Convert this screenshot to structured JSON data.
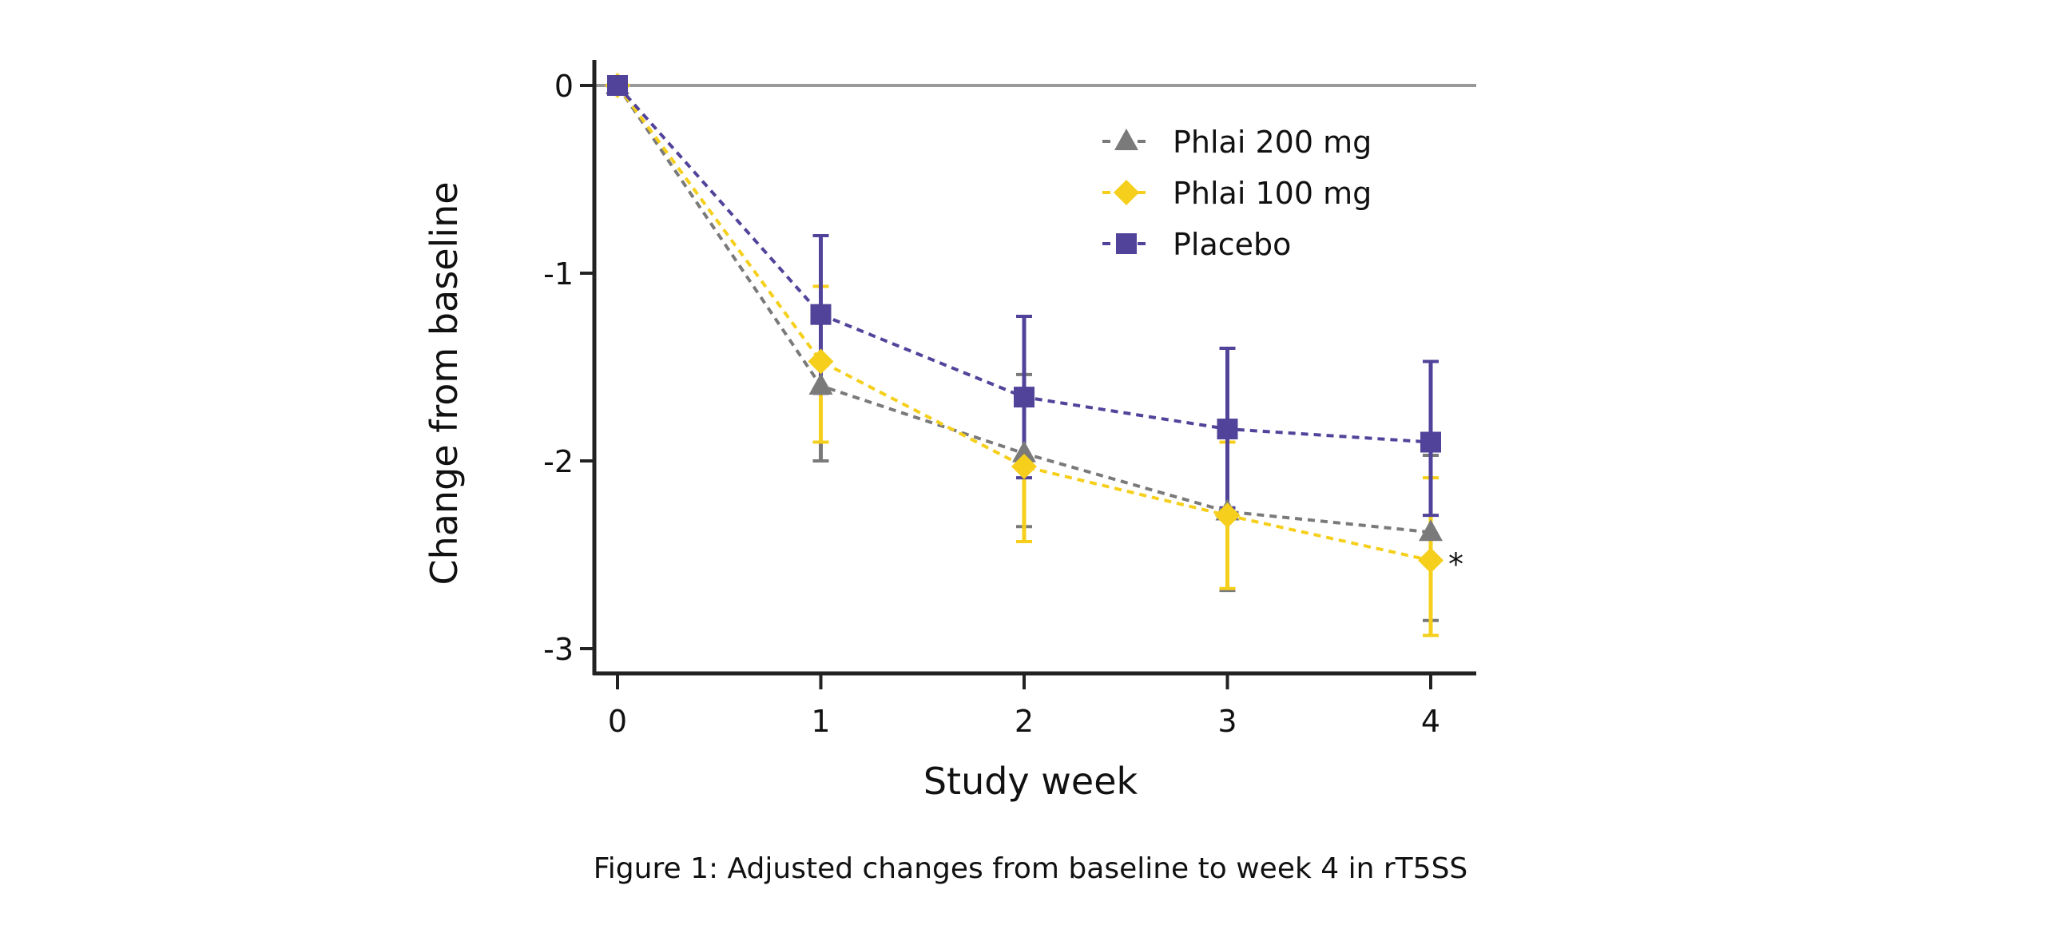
{
  "caption": "Figure 1:  Adjusted changes from baseline to week 4 in rT5SS",
  "chart_data": {
    "type": "line",
    "title": "",
    "xlabel": "Study week",
    "ylabel": "Change from baseline",
    "x": [
      0,
      1,
      2,
      3,
      4
    ],
    "x_ticks": [
      "0",
      "1",
      "2",
      "3",
      "4"
    ],
    "y_ticks": [
      "0",
      "-1",
      "-2",
      "-3"
    ],
    "y_tick_values": [
      0,
      -1,
      -2,
      -3
    ],
    "xlim": [
      -0.1,
      4.2
    ],
    "ylim": [
      -3.1,
      0.13
    ],
    "reference_line": 0,
    "grid": false,
    "legend_position": "top-right",
    "annotations": [
      {
        "text": "*",
        "series": "Phlai 100 mg",
        "x": 4
      }
    ],
    "series": [
      {
        "name": "Phlai 200 mg",
        "marker": "triangle",
        "color": "#7a7a7a",
        "values": [
          0,
          -1.6,
          -1.96,
          -2.27,
          -2.38
        ],
        "err_upper": [
          null,
          -1.2,
          -1.54,
          -1.86,
          -1.97
        ],
        "err_lower": [
          null,
          -2.0,
          -2.35,
          -2.69,
          -2.85
        ]
      },
      {
        "name": "Phlai 100 mg",
        "marker": "diamond",
        "color": "#f5cf1b",
        "values": [
          0,
          -1.47,
          -2.03,
          -2.29,
          -2.53
        ],
        "err_upper": [
          null,
          -1.07,
          -1.63,
          -1.9,
          -2.09
        ],
        "err_lower": [
          null,
          -1.9,
          -2.43,
          -2.68,
          -2.93
        ]
      },
      {
        "name": "Placebo",
        "marker": "square",
        "color": "#52439a",
        "values": [
          0,
          -1.22,
          -1.66,
          -1.83,
          -1.9
        ],
        "err_upper": [
          null,
          -0.8,
          -1.23,
          -1.4,
          -1.47
        ],
        "err_lower": [
          null,
          -1.64,
          -2.09,
          -2.25,
          -2.29
        ]
      }
    ]
  }
}
